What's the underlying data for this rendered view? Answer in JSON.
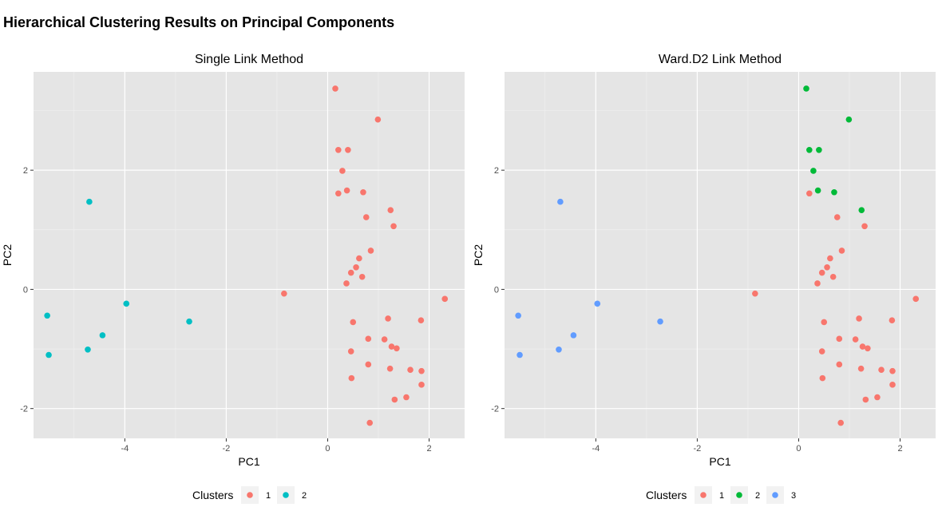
{
  "title": "Hierarchical Clustering Results on Principal Components",
  "colors": {
    "cluster_1": "#F8766D",
    "cluster_2_of_2": "#00BFC4",
    "cluster_2_of_3": "#00BA38",
    "cluster_3_of_3": "#619CFF",
    "panel_background": "#E5E5E5",
    "grid": "#FFFFFF"
  },
  "chart_data": [
    {
      "type": "scatter",
      "title": "Single Link Method",
      "xlabel": "PC1",
      "ylabel": "PC2",
      "xlim": [
        -5.8,
        2.7
      ],
      "ylim": [
        -2.5,
        3.65
      ],
      "xticks": [
        -4,
        -2,
        0,
        2
      ],
      "xtick_labels": [
        "-4",
        "-2",
        "0",
        "2"
      ],
      "yticks": [
        -2,
        0,
        2
      ],
      "ytick_labels": [
        "-2",
        "0",
        "2"
      ],
      "grid": true,
      "legend": {
        "title": "Clusters",
        "position": "bottom",
        "entries": [
          "1",
          "2"
        ]
      },
      "series": [
        {
          "name": "1",
          "color": "#F8766D",
          "points": [
            [
              0.15,
              3.37
            ],
            [
              0.99,
              2.85
            ],
            [
              0.21,
              2.34
            ],
            [
              0.4,
              2.34
            ],
            [
              0.29,
              1.99
            ],
            [
              0.21,
              1.61
            ],
            [
              0.38,
              1.66
            ],
            [
              0.7,
              1.63
            ],
            [
              1.24,
              1.33
            ],
            [
              0.76,
              1.21
            ],
            [
              1.3,
              1.06
            ],
            [
              0.85,
              0.65
            ],
            [
              0.62,
              0.52
            ],
            [
              0.56,
              0.37
            ],
            [
              0.46,
              0.28
            ],
            [
              0.68,
              0.21
            ],
            [
              0.37,
              0.1
            ],
            [
              -0.86,
              -0.07
            ],
            [
              2.31,
              -0.16
            ],
            [
              0.5,
              -0.55
            ],
            [
              1.19,
              -0.49
            ],
            [
              1.84,
              -0.52
            ],
            [
              0.8,
              -0.83
            ],
            [
              1.12,
              -0.84
            ],
            [
              1.26,
              -0.96
            ],
            [
              1.36,
              -0.99
            ],
            [
              0.46,
              -1.04
            ],
            [
              0.8,
              -1.26
            ],
            [
              1.23,
              -1.33
            ],
            [
              1.63,
              -1.35
            ],
            [
              1.85,
              -1.37
            ],
            [
              0.47,
              -1.49
            ],
            [
              1.85,
              -1.6
            ],
            [
              1.55,
              -1.81
            ],
            [
              1.32,
              -1.85
            ],
            [
              0.83,
              -2.24
            ]
          ]
        },
        {
          "name": "2",
          "color": "#00BFC4",
          "points": [
            [
              -4.7,
              1.47
            ],
            [
              -3.97,
              -0.24
            ],
            [
              -5.53,
              -0.44
            ],
            [
              -4.44,
              -0.77
            ],
            [
              -2.73,
              -0.54
            ],
            [
              -4.73,
              -1.01
            ],
            [
              -5.5,
              -1.1
            ]
          ]
        }
      ]
    },
    {
      "type": "scatter",
      "title": "Ward.D2 Link Method",
      "xlabel": "PC1",
      "ylabel": "PC2",
      "xlim": [
        -5.8,
        2.7
      ],
      "ylim": [
        -2.5,
        3.65
      ],
      "xticks": [
        -4,
        -2,
        0,
        2
      ],
      "xtick_labels": [
        "-4",
        "-2",
        "0",
        "2"
      ],
      "yticks": [
        -2,
        0,
        2
      ],
      "ytick_labels": [
        "-2",
        "0",
        "2"
      ],
      "grid": true,
      "legend": {
        "title": "Clusters",
        "position": "bottom",
        "entries": [
          "1",
          "2",
          "3"
        ]
      },
      "series": [
        {
          "name": "1",
          "color": "#F8766D",
          "points": [
            [
              0.21,
              1.61
            ],
            [
              0.76,
              1.21
            ],
            [
              1.3,
              1.06
            ],
            [
              0.85,
              0.65
            ],
            [
              0.62,
              0.52
            ],
            [
              0.56,
              0.37
            ],
            [
              0.46,
              0.28
            ],
            [
              0.68,
              0.21
            ],
            [
              0.37,
              0.1
            ],
            [
              -0.86,
              -0.07
            ],
            [
              2.31,
              -0.16
            ],
            [
              0.5,
              -0.55
            ],
            [
              1.19,
              -0.49
            ],
            [
              1.84,
              -0.52
            ],
            [
              0.8,
              -0.83
            ],
            [
              1.12,
              -0.84
            ],
            [
              1.26,
              -0.96
            ],
            [
              1.36,
              -0.99
            ],
            [
              0.46,
              -1.04
            ],
            [
              0.8,
              -1.26
            ],
            [
              1.23,
              -1.33
            ],
            [
              1.63,
              -1.35
            ],
            [
              1.85,
              -1.37
            ],
            [
              0.47,
              -1.49
            ],
            [
              1.85,
              -1.6
            ],
            [
              1.55,
              -1.81
            ],
            [
              1.32,
              -1.85
            ],
            [
              0.83,
              -2.24
            ]
          ]
        },
        {
          "name": "2",
          "color": "#00BA38",
          "points": [
            [
              0.15,
              3.37
            ],
            [
              0.99,
              2.85
            ],
            [
              0.21,
              2.34
            ],
            [
              0.4,
              2.34
            ],
            [
              0.29,
              1.99
            ],
            [
              0.38,
              1.66
            ],
            [
              0.7,
              1.63
            ],
            [
              1.24,
              1.33
            ]
          ]
        },
        {
          "name": "3",
          "color": "#619CFF",
          "points": [
            [
              -4.7,
              1.47
            ],
            [
              -3.97,
              -0.24
            ],
            [
              -5.53,
              -0.44
            ],
            [
              -4.44,
              -0.77
            ],
            [
              -2.73,
              -0.54
            ],
            [
              -4.73,
              -1.01
            ],
            [
              -5.5,
              -1.1
            ]
          ]
        }
      ]
    }
  ]
}
